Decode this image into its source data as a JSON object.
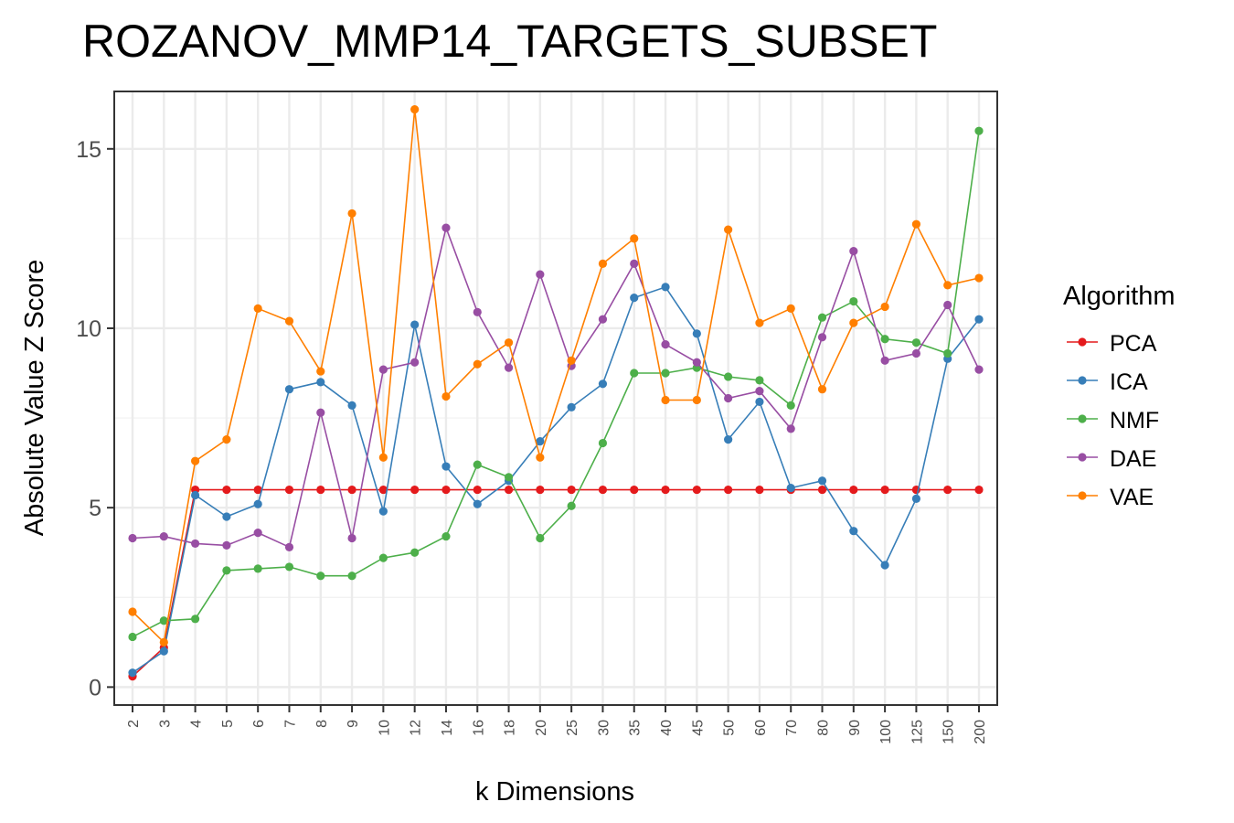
{
  "chart_data": {
    "type": "line",
    "title": "ROZANOV_MMP14_TARGETS_SUBSET",
    "xlabel": "k Dimensions",
    "ylabel": "Absolute Value Z Score",
    "ylim": [
      -0.5,
      16.6
    ],
    "yticks": [
      0,
      5,
      10,
      15
    ],
    "grid": true,
    "legend_title": "Algorithm",
    "legend_position": "right",
    "categories": [
      "2",
      "3",
      "4",
      "5",
      "6",
      "7",
      "8",
      "9",
      "10",
      "12",
      "14",
      "16",
      "18",
      "20",
      "25",
      "30",
      "35",
      "40",
      "45",
      "50",
      "60",
      "70",
      "80",
      "90",
      "100",
      "125",
      "150",
      "200"
    ],
    "series": [
      {
        "name": "PCA",
        "color": "#e41a1c",
        "values": [
          0.3,
          1.1,
          5.5,
          5.5,
          5.5,
          5.5,
          5.5,
          5.5,
          5.5,
          5.5,
          5.5,
          5.5,
          5.5,
          5.5,
          5.5,
          5.5,
          5.5,
          5.5,
          5.5,
          5.5,
          5.5,
          5.5,
          5.5,
          5.5,
          5.5,
          5.5,
          5.5,
          5.5
        ]
      },
      {
        "name": "ICA",
        "color": "#377eb8",
        "values": [
          0.4,
          1.0,
          5.35,
          4.75,
          5.1,
          8.3,
          8.5,
          7.85,
          4.9,
          10.1,
          6.15,
          5.1,
          5.75,
          6.85,
          7.8,
          8.45,
          10.85,
          11.15,
          9.85,
          6.9,
          7.95,
          5.55,
          5.75,
          4.35,
          3.4,
          5.25,
          9.15,
          10.25
        ]
      },
      {
        "name": "NMF",
        "color": "#4daf4a",
        "values": [
          1.4,
          1.85,
          1.9,
          3.25,
          3.3,
          3.35,
          3.1,
          3.1,
          3.6,
          3.75,
          4.2,
          6.2,
          5.85,
          4.15,
          5.05,
          6.8,
          8.75,
          8.75,
          8.9,
          8.65,
          8.55,
          7.85,
          10.3,
          10.75,
          9.7,
          9.6,
          9.3,
          15.5
        ]
      },
      {
        "name": "DAE",
        "color": "#984ea3",
        "values": [
          4.15,
          4.2,
          4.0,
          3.95,
          4.3,
          3.9,
          7.65,
          4.15,
          8.85,
          9.05,
          12.8,
          10.45,
          8.9,
          11.5,
          8.95,
          10.25,
          11.8,
          9.55,
          9.05,
          8.05,
          8.25,
          7.2,
          9.75,
          12.15,
          9.1,
          9.3,
          10.65,
          8.85
        ]
      },
      {
        "name": "VAE",
        "color": "#ff7f00",
        "values": [
          2.1,
          1.25,
          6.3,
          6.9,
          10.55,
          10.2,
          8.8,
          13.2,
          6.4,
          16.1,
          8.1,
          9.0,
          9.6,
          6.4,
          9.1,
          11.8,
          12.5,
          8.0,
          8.0,
          12.75,
          10.15,
          10.55,
          8.3,
          10.15,
          10.6,
          12.9,
          11.2,
          11.4
        ]
      }
    ]
  }
}
